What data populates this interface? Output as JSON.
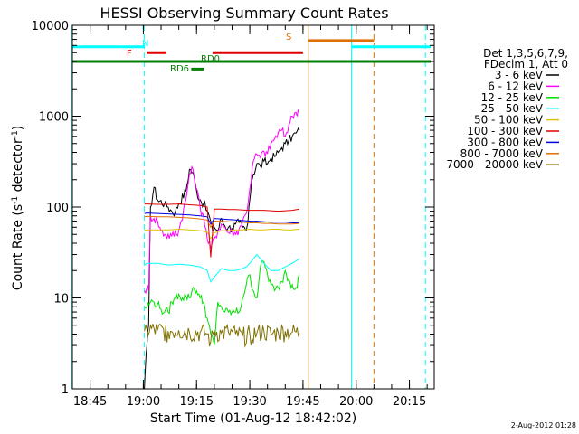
{
  "chart_data": {
    "type": "line",
    "title": "HESSI Observing Summary Count Rates",
    "xlabel": "Start Time (01-Aug-12 18:42:02)",
    "ylabel": "Count Rate (s⁻¹ detector⁻¹)",
    "ylabel_parts": {
      "main": "Count Rate (s",
      "sup1": "-1",
      "mid": " detector",
      "sup2": "-1",
      "end": ")"
    },
    "yscale": "log",
    "ylim": [
      1,
      10000
    ],
    "xlim": [
      "18:40",
      "20:22"
    ],
    "x_ticks": [
      "18:45",
      "19:00",
      "19:15",
      "19:30",
      "19:45",
      "20:00",
      "20:15"
    ],
    "y_ticks": [
      "1",
      "10",
      "100",
      "1000",
      "10000"
    ],
    "legend": {
      "position": "right",
      "header": [
        "Det 1,3,5,6,7,9,",
        "FDecim 1, Att 0"
      ],
      "entries": [
        {
          "label": "3 - 6 keV",
          "color": "#000000"
        },
        {
          "label": "6 - 12 keV",
          "color": "#ff00ff"
        },
        {
          "label": "12 - 25 keV",
          "color": "#00e000"
        },
        {
          "label": "25 - 50 keV",
          "color": "#00ffff"
        },
        {
          "label": "50 - 100 keV",
          "color": "#e0c000"
        },
        {
          "label": "100 - 300 keV",
          "color": "#e00000"
        },
        {
          "label": "300 - 800 keV",
          "color": "#0000e0"
        },
        {
          "label": "800 - 7000 keV",
          "color": "#e07000"
        },
        {
          "label": "7000 - 20000 keV",
          "color": "#807000"
        }
      ]
    },
    "series": [
      {
        "name": "3 - 6 keV",
        "color": "#000000",
        "x_min": [
          18.3,
          18.5,
          18.8,
          19,
          19.5,
          20,
          21,
          22,
          24,
          25,
          26,
          27,
          28,
          30,
          31,
          32,
          33,
          34,
          35,
          36,
          37,
          37.5,
          38,
          39,
          40,
          41,
          42,
          43,
          44,
          45,
          46,
          47,
          47.5,
          48,
          48.5,
          49,
          50,
          51,
          52,
          53,
          54,
          55,
          56,
          57,
          58,
          59,
          60,
          61,
          62
        ],
        "values": [
          1,
          1.5,
          2.5,
          3,
          5,
          100,
          165,
          120,
          110,
          100,
          90,
          88,
          110,
          150,
          260,
          240,
          150,
          120,
          110,
          90,
          70,
          55,
          60,
          55,
          75,
          62,
          60,
          58,
          65,
          68,
          60,
          55,
          68,
          120,
          200,
          230,
          300,
          280,
          320,
          300,
          350,
          360,
          400,
          450,
          500,
          540,
          600,
          650,
          700
        ]
      },
      {
        "name": "6 - 12 keV",
        "color": "#ff00ff",
        "x_min": [
          18.3,
          19,
          19.5,
          20,
          21,
          22,
          23,
          24,
          26,
          28,
          30,
          31,
          32,
          33,
          34,
          35,
          36,
          37,
          38,
          39,
          40,
          41,
          42,
          43,
          44,
          45,
          46,
          47,
          48,
          49,
          50,
          51,
          52,
          53,
          54,
          55,
          56,
          57,
          58,
          59,
          60,
          61,
          62
        ],
        "values": [
          12,
          13,
          12,
          80,
          75,
          70,
          55,
          50,
          48,
          55,
          120,
          230,
          260,
          160,
          100,
          80,
          45,
          35,
          45,
          55,
          65,
          60,
          52,
          55,
          50,
          58,
          70,
          85,
          160,
          320,
          380,
          350,
          410,
          390,
          500,
          560,
          650,
          700,
          600,
          800,
          1000,
          1100,
          1200
        ]
      },
      {
        "name": "12 - 25 keV",
        "color": "#00e000",
        "x_min": [
          18.3,
          19,
          20,
          21,
          22,
          23,
          24,
          25,
          26,
          27,
          28,
          29,
          30,
          31,
          32,
          33,
          34,
          35,
          36,
          37,
          38,
          39,
          40,
          41,
          42,
          43,
          44,
          45,
          46,
          47,
          48,
          49,
          50,
          51,
          52,
          53,
          54,
          55,
          56,
          57,
          58,
          59,
          60,
          61,
          62
        ],
        "values": [
          8,
          8,
          9,
          9,
          8.5,
          7.5,
          7,
          7,
          9,
          10,
          11,
          10,
          10.5,
          10,
          13,
          12,
          10,
          9,
          6,
          4,
          3,
          9,
          8,
          7,
          7,
          7,
          7,
          7,
          10,
          14,
          18,
          12,
          10,
          22,
          25,
          18,
          14,
          12,
          13,
          15,
          20,
          16,
          14,
          13,
          18
        ]
      },
      {
        "name": "25 - 50 keV",
        "color": "#00ffff",
        "x_min": [
          18.3,
          19,
          22,
          25,
          28,
          31,
          34,
          36,
          37,
          38,
          40,
          42,
          44,
          46,
          47,
          48,
          49,
          50,
          52,
          54,
          56,
          58,
          60,
          62
        ],
        "values": [
          23,
          24,
          24,
          23,
          23.5,
          23,
          22,
          20,
          15,
          17,
          21,
          20,
          20,
          21,
          22,
          24,
          27,
          30,
          24,
          20,
          20,
          22,
          24,
          27
        ]
      },
      {
        "name": "50 - 100 keV",
        "color": "#e0c000",
        "x_min": [
          18.3,
          19,
          22,
          25,
          28,
          31,
          34,
          36,
          37,
          38,
          40,
          42,
          44,
          46,
          48,
          50,
          52,
          54,
          56,
          58,
          60,
          62
        ],
        "values": [
          55,
          56,
          56,
          56,
          57,
          56,
          55,
          53,
          45,
          52,
          55,
          55,
          56,
          56,
          57,
          56,
          56,
          57,
          57,
          56,
          56,
          57
        ]
      },
      {
        "name": "100 - 300 keV",
        "color": "#e00000",
        "x_min": [
          18.3,
          19,
          22,
          25,
          28,
          31,
          34,
          36,
          37,
          38,
          40,
          42,
          44,
          46,
          48,
          50,
          52,
          54,
          56,
          58,
          60,
          62
        ],
        "values": [
          108,
          108,
          107,
          107,
          108,
          106,
          104,
          100,
          28,
          95,
          95,
          94,
          94,
          93,
          92,
          92,
          92,
          91,
          90,
          91,
          92,
          95
        ]
      },
      {
        "name": "300 - 800 keV",
        "color": "#0000e0",
        "x_min": [
          18.3,
          19,
          22,
          25,
          28,
          31,
          34,
          36,
          37,
          38,
          40,
          42,
          44,
          46,
          48,
          50,
          52,
          54,
          56,
          58,
          60,
          62
        ],
        "values": [
          85,
          86,
          85,
          84,
          83,
          82,
          80,
          78,
          65,
          75,
          74,
          73,
          72,
          71,
          70,
          70,
          69,
          68,
          68,
          68,
          67,
          67
        ]
      },
      {
        "name": "800 - 7000 keV",
        "color": "#e07000",
        "x_min": [
          18.3,
          19,
          22,
          25,
          28,
          31,
          34,
          36,
          37,
          38,
          40,
          42,
          44,
          46,
          48,
          50,
          52,
          54,
          56,
          58,
          60,
          62
        ],
        "values": [
          78,
          79,
          78,
          78,
          77,
          76,
          74,
          72,
          60,
          70,
          70,
          69,
          68,
          68,
          67,
          67,
          66,
          66,
          65,
          65,
          65,
          66
        ]
      },
      {
        "name": "7000 - 20000 keV",
        "color": "#807000",
        "x_min": [
          18.3,
          19,
          22,
          25,
          28,
          31,
          34,
          36,
          37,
          38,
          40,
          42,
          44,
          46,
          48,
          50,
          52,
          54,
          56,
          58,
          60,
          62
        ],
        "values": [
          4.3,
          4.5,
          4.4,
          4.3,
          4.4,
          4.2,
          4.2,
          4,
          3.3,
          4.3,
          4.1,
          4.2,
          4.0,
          3.8,
          4.0,
          4.1,
          4.3,
          4.0,
          4.2,
          4.3,
          4.2,
          4.1
        ]
      }
    ],
    "annotations": [
      {
        "text": "N",
        "color": "#00ffff"
      },
      {
        "text": "F",
        "color": "#e00000"
      },
      {
        "text": "RD0",
        "color": "#008000"
      },
      {
        "text": "RD6",
        "color": "#008000"
      },
      {
        "text": "S",
        "color": "#e07000"
      }
    ],
    "flag_bars": [
      {
        "color": "#00ffff",
        "x_min": [
          -2,
          18.3
        ],
        "y": 5800
      },
      {
        "color": "#00ffff",
        "x_min": [
          76.7,
          99
        ],
        "y": 5800
      },
      {
        "color": "#e00000",
        "x_min": [
          19,
          24.5
        ],
        "y": 5000
      },
      {
        "color": "#e00000",
        "x_min": [
          37.5,
          63
        ],
        "y": 5000
      },
      {
        "color": "#008000",
        "x_min": [
          -2,
          99
        ],
        "y": 4000
      },
      {
        "color": "#008000",
        "x_min": [
          31.5,
          35
        ],
        "y": 3300
      },
      {
        "color": "#e07000",
        "x_min": [
          64.5,
          83
        ],
        "y": 6800
      }
    ],
    "vertical_markers": [
      {
        "color": "#00ffff",
        "style": "solid",
        "x_min": -2.1
      },
      {
        "color": "#00ffff",
        "style": "dashed",
        "x_min": 18.3
      },
      {
        "color": "#c09040",
        "style": "solid",
        "x_min": 64.5
      },
      {
        "color": "#00ffff",
        "style": "solid",
        "x_min": 76.7
      },
      {
        "color": "#e07000",
        "style": "dashed",
        "x_min": 83
      },
      {
        "color": "#00ffff",
        "style": "dashed",
        "x_min": 97.5
      }
    ],
    "grid": false
  },
  "footer": {
    "date_stamp": "2-Aug-2012 01:28"
  }
}
